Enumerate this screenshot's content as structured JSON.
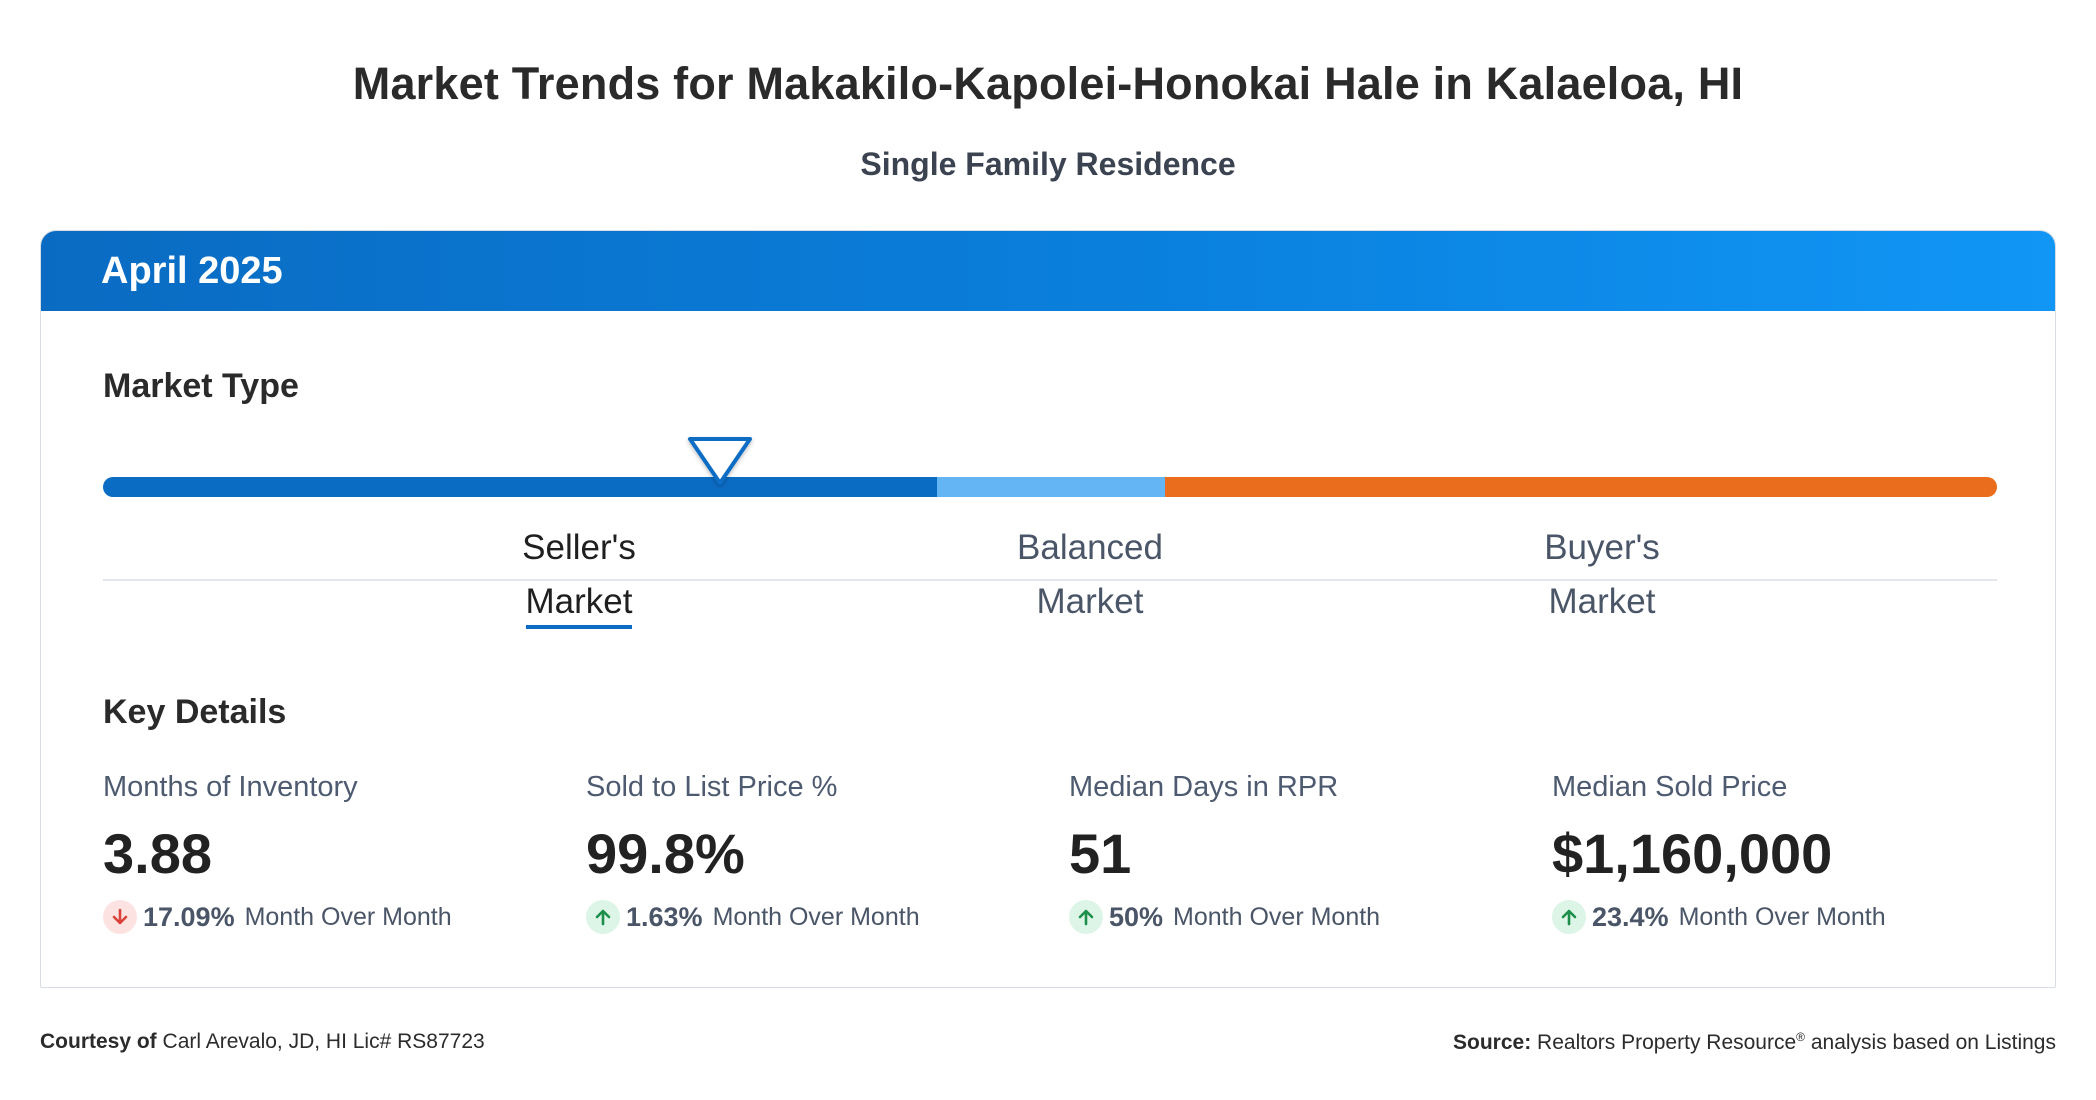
{
  "page": {
    "title": "Market Trends for Makakilo-Kapolei-Honokai Hale in Kalaeloa, HI",
    "subtitle": "Single Family Residence"
  },
  "card": {
    "period": "April 2025"
  },
  "market_type": {
    "heading": "Market Type",
    "indicator_position_fraction": 0.326,
    "segments": [
      {
        "line1": "Seller's",
        "line2": "Market",
        "active": true,
        "color": "#0b6cc4"
      },
      {
        "line1": "Balanced",
        "line2": "Market",
        "active": false,
        "color": "#63b6f3"
      },
      {
        "line1": "Buyer's",
        "line2": "Market",
        "active": false,
        "color": "#e96d1c"
      }
    ]
  },
  "key_details": {
    "heading": "Key Details",
    "metrics": [
      {
        "label": "Months of Inventory",
        "value": "3.88",
        "direction": "down",
        "change": "17.09%",
        "change_label": "Month Over Month"
      },
      {
        "label": "Sold to List Price %",
        "value": "99.8%",
        "direction": "up",
        "change": "1.63%",
        "change_label": "Month Over Month"
      },
      {
        "label": "Median Days in RPR",
        "value": "51",
        "direction": "up",
        "change": "50%",
        "change_label": "Month Over Month"
      },
      {
        "label": "Median Sold Price",
        "value": "$1,160,000",
        "direction": "up",
        "change": "23.4%",
        "change_label": "Month Over Month"
      }
    ]
  },
  "footer": {
    "courtesy_label": "Courtesy of",
    "courtesy_text": "Carl Arevalo, JD, HI Lic# RS87723",
    "source_label": "Source:",
    "source_text_1": "Realtors Property Resource",
    "source_mark": "®",
    "source_text_2": " analysis based on Listings"
  },
  "colors": {
    "header_gradient_start": "#0a6bc2",
    "header_gradient_end": "#1196f6",
    "down_arrow": "#d9413a",
    "up_arrow": "#1e8f4a"
  }
}
